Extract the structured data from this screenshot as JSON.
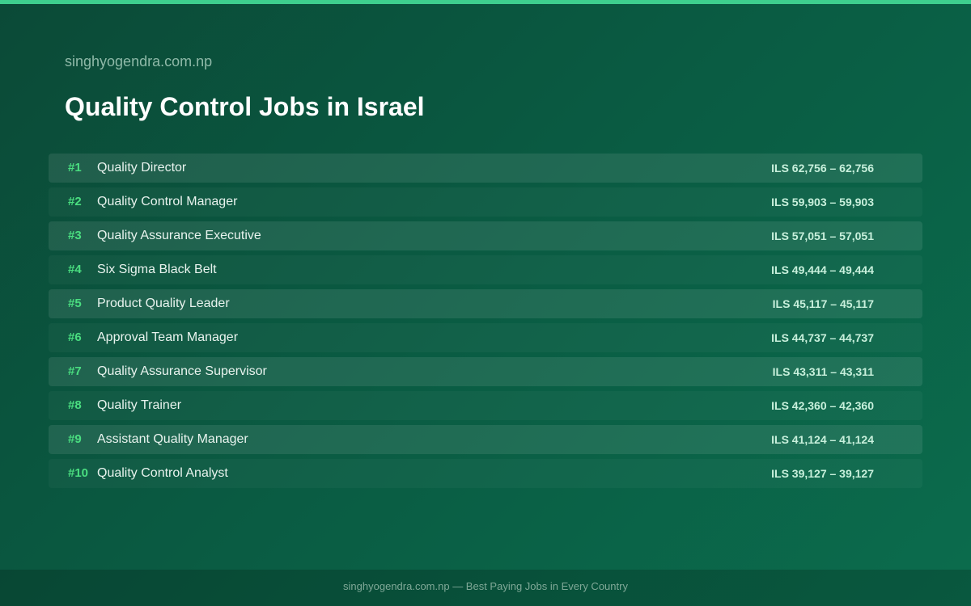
{
  "header": {
    "site": "singhyogendra.com.np",
    "title": "Quality Control Jobs in Israel"
  },
  "rows": [
    {
      "rank": "#1",
      "title": "Quality Director",
      "salary": "ILS 62,756 – 62,756"
    },
    {
      "rank": "#2",
      "title": "Quality Control Manager",
      "salary": "ILS 59,903 – 59,903"
    },
    {
      "rank": "#3",
      "title": "Quality Assurance Executive",
      "salary": "ILS 57,051 – 57,051"
    },
    {
      "rank": "#4",
      "title": "Six Sigma Black Belt",
      "salary": "ILS 49,444 – 49,444"
    },
    {
      "rank": "#5",
      "title": "Product Quality Leader",
      "salary": "ILS 45,117 – 45,117"
    },
    {
      "rank": "#6",
      "title": "Approval Team Manager",
      "salary": "ILS 44,737 – 44,737"
    },
    {
      "rank": "#7",
      "title": "Quality Assurance Supervisor",
      "salary": "ILS 43,311 – 43,311"
    },
    {
      "rank": "#8",
      "title": "Quality Trainer",
      "salary": "ILS 42,360 – 42,360"
    },
    {
      "rank": "#9",
      "title": "Assistant Quality Manager",
      "salary": "ILS 41,124 – 41,124"
    },
    {
      "rank": "#10",
      "title": "Quality Control Analyst",
      "salary": "ILS 39,127 – 39,127"
    }
  ],
  "footer": {
    "text": "singhyogendra.com.np — Best Paying Jobs in Every Country"
  }
}
